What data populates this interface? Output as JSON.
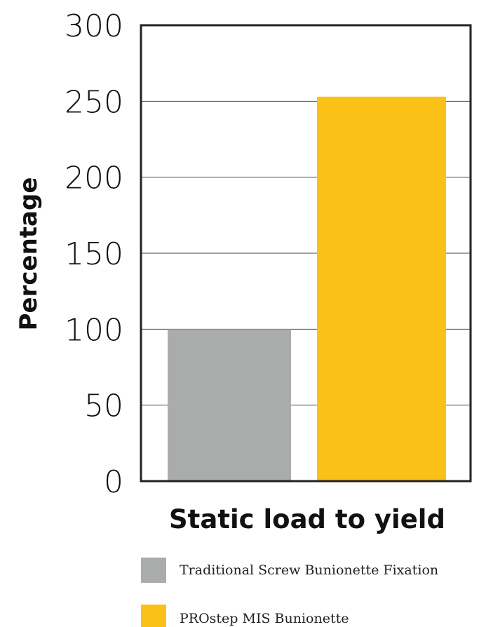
{
  "chart_data": {
    "type": "bar",
    "categories": [
      "Traditional Screw Bunionette Fixation",
      "PROstep MIS Bunionette"
    ],
    "values": [
      100,
      253
    ],
    "colors": [
      "#a9acab",
      "#fcc116"
    ],
    "xlabel": "Static load to yield",
    "ylabel": "Percentage",
    "ylim": [
      0,
      300
    ],
    "yticks": [
      0,
      50,
      100,
      150,
      200,
      250,
      300
    ],
    "grid": true,
    "legend": {
      "placement": "bottom",
      "entries": [
        {
          "label": "Traditional Screw Bunionette Fixation",
          "color": "#a9acab"
        },
        {
          "label": "PROstep MIS Bunionette",
          "color": "#fcc116"
        }
      ]
    }
  }
}
